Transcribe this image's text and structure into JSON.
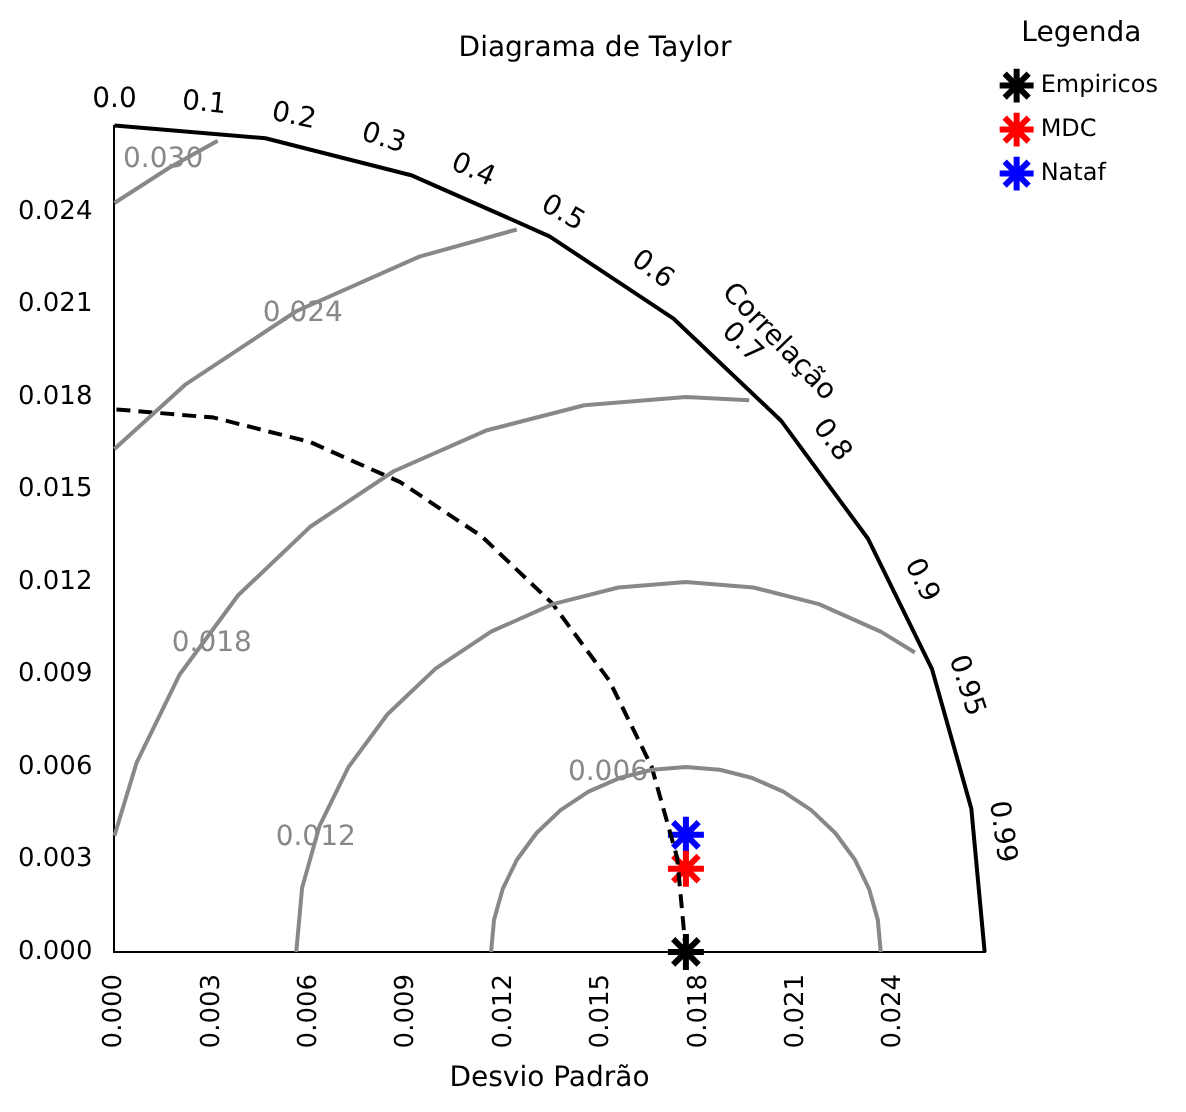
{
  "chart_data": {
    "type": "scatter",
    "title": "Diagrama de Taylor",
    "xlabel": "Desvio Padrão",
    "legend_title": "Legenda",
    "legend": "top right",
    "grid": false,
    "xlim": [
      0,
      0.0268
    ],
    "ylim": [
      0,
      0.0268
    ],
    "xticks": [
      {
        "value": 0,
        "label": "0.000"
      },
      {
        "value": 0.003,
        "label": "0.003"
      },
      {
        "value": 0.006,
        "label": "0.006"
      },
      {
        "value": 0.009,
        "label": "0.009"
      },
      {
        "value": 0.012,
        "label": "0.012"
      },
      {
        "value": 0.015,
        "label": "0.015"
      },
      {
        "value": 0.018,
        "label": "0.018"
      },
      {
        "value": 0.021,
        "label": "0.021"
      },
      {
        "value": 0.024,
        "label": "0.024"
      }
    ],
    "yticks": [
      {
        "value": 0,
        "label": "0.000"
      },
      {
        "value": 0.003,
        "label": "0.003"
      },
      {
        "value": 0.006,
        "label": "0.006"
      },
      {
        "value": 0.009,
        "label": "0.009"
      },
      {
        "value": 0.012,
        "label": "0.012"
      },
      {
        "value": 0.015,
        "label": "0.015"
      },
      {
        "value": 0.018,
        "label": "0.018"
      },
      {
        "value": 0.021,
        "label": "0.021"
      },
      {
        "value": 0.024,
        "label": "0.024"
      }
    ],
    "annotations": [
      {
        "text": "0.0",
        "x": 0,
        "y": 0.0268
      },
      {
        "text": "0.1",
        "x": 0.00268,
        "y": 0.02667
      },
      {
        "text": "0.2",
        "x": 0.00536,
        "y": 0.02626
      },
      {
        "text": "0.3",
        "x": 0.00804,
        "y": 0.02556
      },
      {
        "text": "0.4",
        "x": 0.01072,
        "y": 0.02456
      },
      {
        "text": "0.5",
        "x": 0.0134,
        "y": 0.02321
      },
      {
        "text": "0.6",
        "x": 0.01608,
        "y": 0.02144
      },
      {
        "text": "0.7",
        "x": 0.01876,
        "y": 0.01914
      },
      {
        "text": "0.8",
        "x": 0.02144,
        "y": 0.01608
      },
      {
        "text": "0.9",
        "x": 0.02412,
        "y": 0.01168
      },
      {
        "text": "0.95",
        "x": 0.02546,
        "y": 0.00837
      },
      {
        "text": "0.99",
        "x": 0.02653,
        "y": 0.00378
      },
      {
        "text": "Correlação",
        "x": 0.0193,
        "y": 0.0186
      },
      {
        "text": "0.006",
        "x": 0.0152,
        "y": 0.0058
      },
      {
        "text": "0.012",
        "x": 0.0062,
        "y": 0.0037
      },
      {
        "text": "0.018",
        "x": 0.003,
        "y": 0.01
      },
      {
        "text": "0.024",
        "x": 0.0058,
        "y": 0.0207
      },
      {
        "text": "0.030",
        "x": 0.0015,
        "y": 0.0257
      }
    ],
    "series": [
      {
        "type": "line",
        "marker": "none",
        "color": "#888888",
        "line_style": "solid",
        "x": [
          0.0236,
          0.02351,
          0.02324,
          0.0228,
          0.0222,
          0.02146,
          0.0206,
          0.01965,
          0.01864,
          0.0176,
          0.01656,
          0.01555,
          0.0146,
          0.01374,
          0.013,
          0.0124,
          0.01196,
          0.01169,
          0.0116
        ],
        "values": [
          0,
          0.00104,
          0.00205,
          0.003,
          0.00386,
          0.0046,
          0.0052,
          0.00564,
          0.00591,
          0.006,
          0.00591,
          0.00564,
          0.0052,
          0.0046,
          0.00386,
          0.003,
          0.00205,
          0.00104,
          0
        ]
      },
      {
        "type": "line",
        "marker": "none",
        "color": "#888888",
        "line_style": "solid",
        "x": [
          0.02465,
          0.0236,
          0.0217,
          0.01968,
          0.0176,
          0.01552,
          0.0135,
          0.0116,
          0.00989,
          0.00841,
          0.00721,
          0.00632,
          0.00578,
          0.0056
        ],
        "values": [
          0.00971,
          0.01039,
          0.01128,
          0.01182,
          0.012,
          0.01182,
          0.01128,
          0.01039,
          0.00919,
          0.00771,
          0.006,
          0.0041,
          0.00208,
          0
        ]
      },
      {
        "type": "line",
        "marker": "none",
        "color": "#888888",
        "line_style": "solid",
        "x": [
          0.01955,
          0.0176,
          0.01447,
          0.01144,
          0.0086,
          0.00603,
          0.00381,
          0.00201,
          0.00069,
          0
        ],
        "values": [
          0.01789,
          0.018,
          0.01773,
          0.01691,
          0.01559,
          0.01379,
          0.01157,
          0.009,
          0.00616,
          0.00377
        ]
      },
      {
        "type": "line",
        "marker": "none",
        "color": "#888888",
        "line_style": "solid",
        "x": [
          0.01239,
          0.00939,
          0.0056,
          0.00217,
          0
        ],
        "values": [
          0.02343,
          0.02255,
          0.02078,
          0.01839,
          0.01631
        ]
      },
      {
        "type": "line",
        "marker": "none",
        "color": "#888888",
        "line_style": "solid",
        "x": [
          0.00318,
          0.0017,
          0
        ],
        "values": [
          0.02631,
          0.02544,
          0.02429
        ]
      },
      {
        "type": "line",
        "marker": "none",
        "color": "#000000",
        "line_style": "dashed",
        "x": [
          0.0176,
          0.01733,
          0.01654,
          0.01524,
          0.01348,
          0.01131,
          0.0088,
          0.00602,
          0.00306,
          0
        ],
        "values": [
          0,
          0.00306,
          0.00602,
          0.0088,
          0.01131,
          0.01348,
          0.01524,
          0.01654,
          0.01733,
          0.0176
        ]
      },
      {
        "type": "line",
        "marker": "none",
        "color": "#000000",
        "line_style": "solid",
        "x": [
          0.0268,
          0.02639,
          0.02518,
          0.02321,
          0.02053,
          0.01723,
          0.0134,
          0.00917,
          0.00465,
          0
        ],
        "values": [
          0,
          0.00465,
          0.00917,
          0.0134,
          0.01723,
          0.02053,
          0.02321,
          0.02518,
          0.02639,
          0.0268
        ]
      },
      {
        "name": "Empiricos",
        "color": "#000000",
        "x": [
          0.0176
        ],
        "values": [
          0
        ]
      },
      {
        "name": "MDC",
        "color": "#ff0000",
        "x": [
          0.0176
        ],
        "values": [
          0.0027
        ]
      },
      {
        "name": "Nataf",
        "color": "#0000ff",
        "x": [
          0.0176
        ],
        "values": [
          0.0038
        ]
      }
    ]
  }
}
